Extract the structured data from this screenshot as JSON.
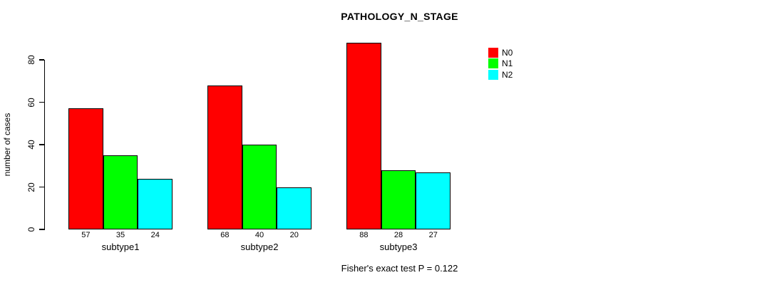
{
  "chart_data": {
    "type": "bar",
    "title": "PATHOLOGY_N_STAGE",
    "ylabel": "number of cases",
    "xlabel": "",
    "categories": [
      "subtype1",
      "subtype2",
      "subtype3"
    ],
    "series": [
      {
        "name": "N0",
        "color": "#ff0000",
        "values": [
          57,
          68,
          88
        ]
      },
      {
        "name": "N1",
        "color": "#00ff00",
        "values": [
          35,
          40,
          28
        ]
      },
      {
        "name": "N2",
        "color": "#00ffff",
        "values": [
          24,
          20,
          27
        ]
      }
    ],
    "bar_labels": [
      [
        57,
        35,
        24
      ],
      [
        68,
        40,
        20
      ],
      [
        88,
        28,
        27
      ]
    ],
    "y_ticks": [
      0,
      20,
      40,
      60,
      80
    ],
    "ylim": [
      0,
      88
    ],
    "grid": false,
    "legend_position": "top-right",
    "annotation": "Fisher's exact test P = 0.122"
  }
}
